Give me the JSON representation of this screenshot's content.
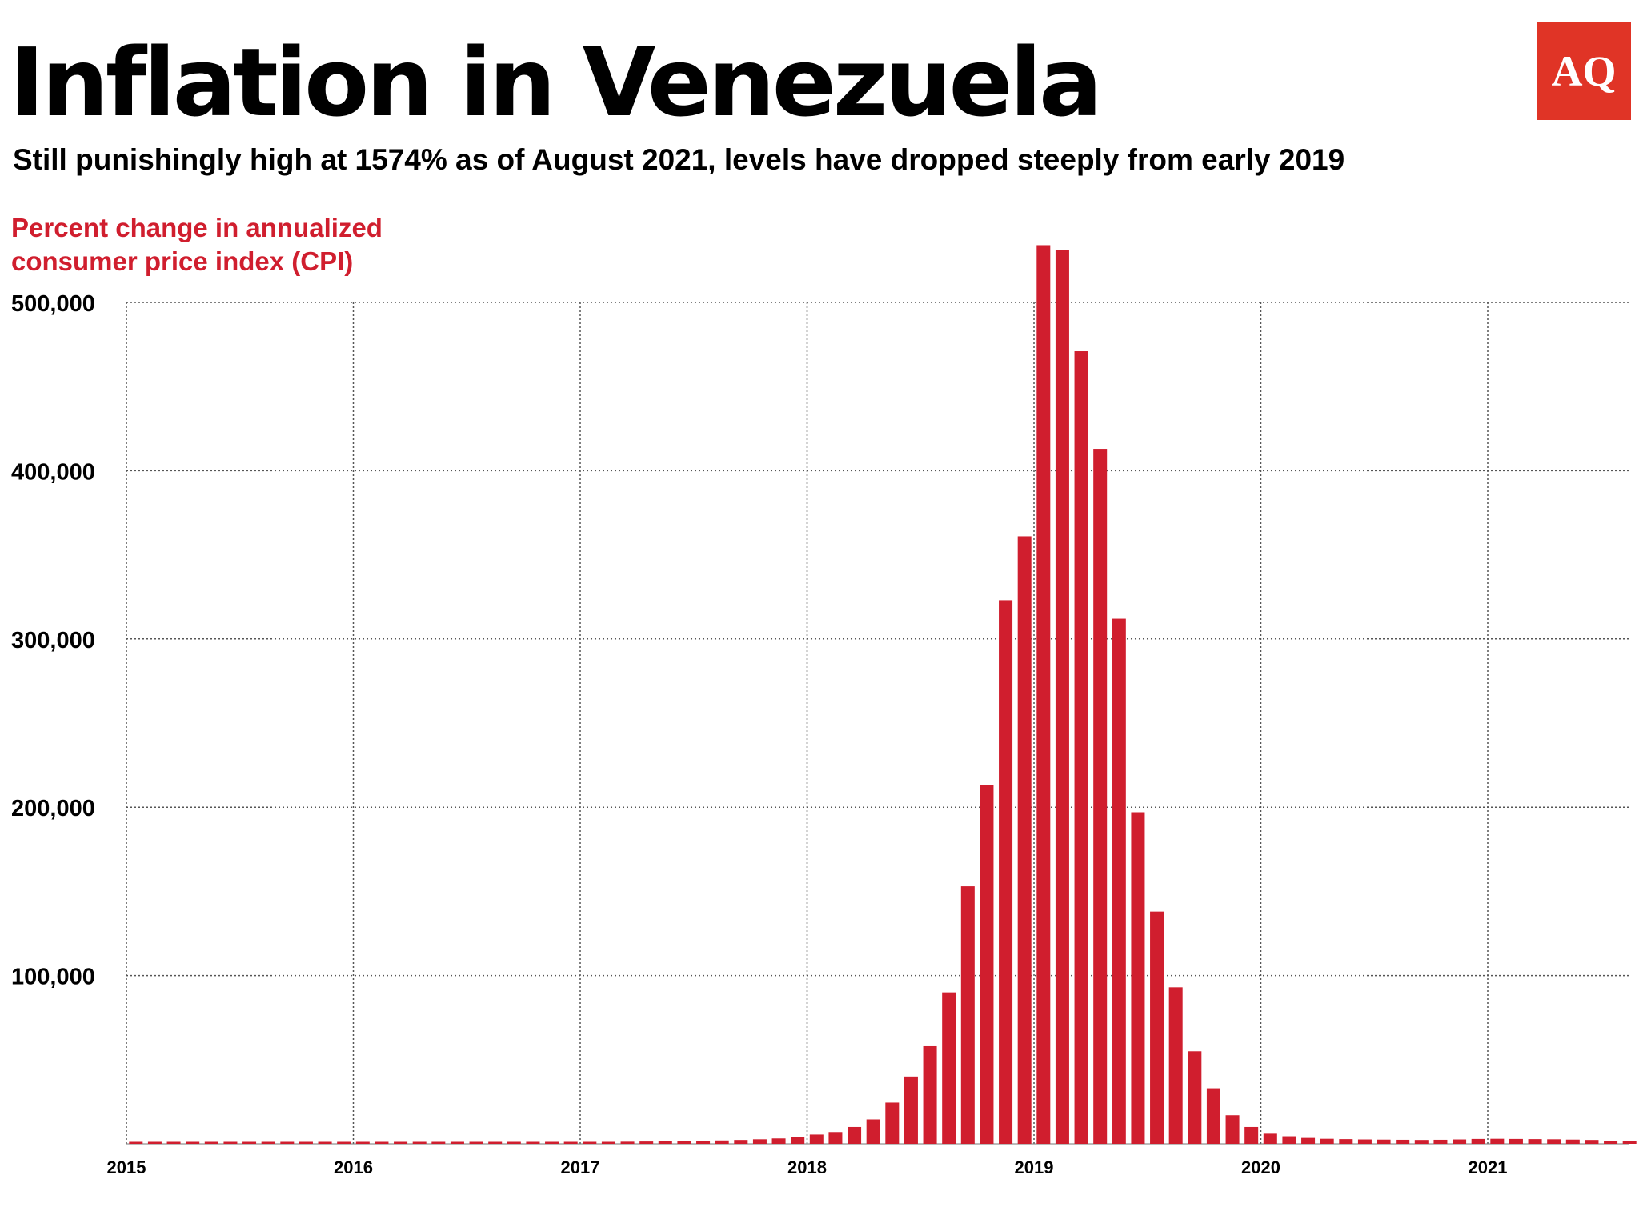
{
  "header": {
    "title": "Inflation in Venezuela",
    "subtitle": "Still punishingly high at 1574% as of August 2021, levels have dropped steeply from early 2019",
    "logo": "AQ"
  },
  "colors": {
    "bars": "#d01e2e",
    "accent": "#d01e2e",
    "logo_bg": "#e03426"
  },
  "chart_data": {
    "type": "bar",
    "ylabel": "Percent change in annualized consumer price index (CPI)",
    "xlabel": "",
    "ylim": [
      0,
      500000
    ],
    "yticks": [
      100000,
      200000,
      300000,
      400000,
      500000
    ],
    "ytick_labels": [
      "100,000",
      "200,000",
      "300,000",
      "400,000",
      "500,000"
    ],
    "xticks": [
      "2015",
      "2016",
      "2017",
      "2018",
      "2019",
      "2020",
      "2021"
    ],
    "grid": true,
    "x_start": "2015-01",
    "x_end": "2021-08",
    "frequency": "monthly",
    "x": [
      "2015-01",
      "2015-02",
      "2015-03",
      "2015-04",
      "2015-05",
      "2015-06",
      "2015-07",
      "2015-08",
      "2015-09",
      "2015-10",
      "2015-11",
      "2015-12",
      "2016-01",
      "2016-02",
      "2016-03",
      "2016-04",
      "2016-05",
      "2016-06",
      "2016-07",
      "2016-08",
      "2016-09",
      "2016-10",
      "2016-11",
      "2016-12",
      "2017-01",
      "2017-02",
      "2017-03",
      "2017-04",
      "2017-05",
      "2017-06",
      "2017-07",
      "2017-08",
      "2017-09",
      "2017-10",
      "2017-11",
      "2017-12",
      "2018-01",
      "2018-02",
      "2018-03",
      "2018-04",
      "2018-05",
      "2018-06",
      "2018-07",
      "2018-08",
      "2018-09",
      "2018-10",
      "2018-11",
      "2018-12",
      "2019-01",
      "2019-02",
      "2019-03",
      "2019-04",
      "2019-05",
      "2019-06",
      "2019-07",
      "2019-08",
      "2019-09",
      "2019-10",
      "2019-11",
      "2019-12",
      "2020-01",
      "2020-02",
      "2020-03",
      "2020-04",
      "2020-05",
      "2020-06",
      "2020-07",
      "2020-08",
      "2020-09",
      "2020-10",
      "2020-11",
      "2020-12",
      "2021-01",
      "2021-02",
      "2021-03",
      "2021-04",
      "2021-05",
      "2021-06",
      "2021-07",
      "2021-08"
    ],
    "values": [
      70,
      80,
      90,
      100,
      120,
      140,
      160,
      180,
      200,
      230,
      260,
      300,
      330,
      360,
      400,
      440,
      490,
      540,
      600,
      660,
      730,
      800,
      880,
      960,
      1050,
      1150,
      1260,
      1380,
      1500,
      1650,
      1800,
      2000,
      2300,
      2700,
      3200,
      4000,
      5500,
      7000,
      10000,
      14500,
      24500,
      40000,
      58000,
      90000,
      153000,
      213000,
      323000,
      361000,
      534000,
      531000,
      471000,
      413000,
      312000,
      197000,
      138000,
      93000,
      55000,
      33000,
      17000,
      10000,
      6000,
      4500,
      3500,
      3000,
      2800,
      2600,
      2500,
      2400,
      2300,
      2400,
      2600,
      2900,
      3000,
      2900,
      2800,
      2700,
      2500,
      2300,
      1900,
      1574
    ]
  }
}
